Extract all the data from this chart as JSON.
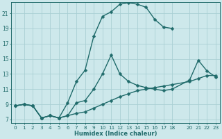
{
  "xlabel": "Humidex (Indice chaleur)",
  "bg_color": "#cde8eb",
  "grid_color": "#aacfd4",
  "line_color": "#206b6b",
  "line_width": 1.0,
  "marker_size": 2.5,
  "xlim": [
    -0.5,
    23.5
  ],
  "ylim": [
    6.5,
    22.5
  ],
  "xticks": [
    0,
    1,
    2,
    3,
    4,
    5,
    6,
    7,
    8,
    9,
    10,
    11,
    12,
    13,
    14,
    15,
    16,
    17,
    18,
    20,
    21,
    22,
    23
  ],
  "yticks": [
    7,
    9,
    11,
    13,
    15,
    17,
    19,
    21
  ],
  "series1_x": [
    0,
    1,
    2,
    3,
    4,
    5,
    6,
    7,
    8,
    9,
    10,
    11,
    12,
    13,
    14,
    15,
    16,
    17,
    18
  ],
  "series1_y": [
    8.8,
    9.0,
    8.8,
    7.2,
    7.5,
    7.2,
    9.2,
    12.0,
    13.5,
    18.0,
    20.6,
    21.2,
    22.2,
    22.4,
    22.2,
    21.8,
    20.2,
    19.2,
    19.0
  ],
  "series2_x": [
    0,
    1,
    2,
    3,
    4,
    5,
    6,
    7,
    8,
    9,
    10,
    11,
    12,
    13,
    14,
    15,
    16,
    17,
    18,
    20,
    21,
    22,
    23
  ],
  "series2_y": [
    8.8,
    9.0,
    8.8,
    7.2,
    7.5,
    7.2,
    7.5,
    9.2,
    9.5,
    11.0,
    13.0,
    15.5,
    13.0,
    12.0,
    11.5,
    11.2,
    11.0,
    10.8,
    11.0,
    12.2,
    14.8,
    13.4,
    12.6
  ],
  "series3_x": [
    0,
    1,
    2,
    3,
    4,
    5,
    6,
    7,
    8,
    9,
    10,
    11,
    12,
    13,
    14,
    15,
    16,
    17,
    18,
    20,
    21,
    22,
    23
  ],
  "series3_y": [
    8.8,
    9.0,
    8.8,
    7.2,
    7.5,
    7.2,
    7.5,
    7.8,
    8.0,
    8.5,
    9.0,
    9.5,
    10.0,
    10.4,
    10.8,
    11.0,
    11.2,
    11.4,
    11.6,
    12.0,
    12.4,
    12.8,
    12.8
  ]
}
